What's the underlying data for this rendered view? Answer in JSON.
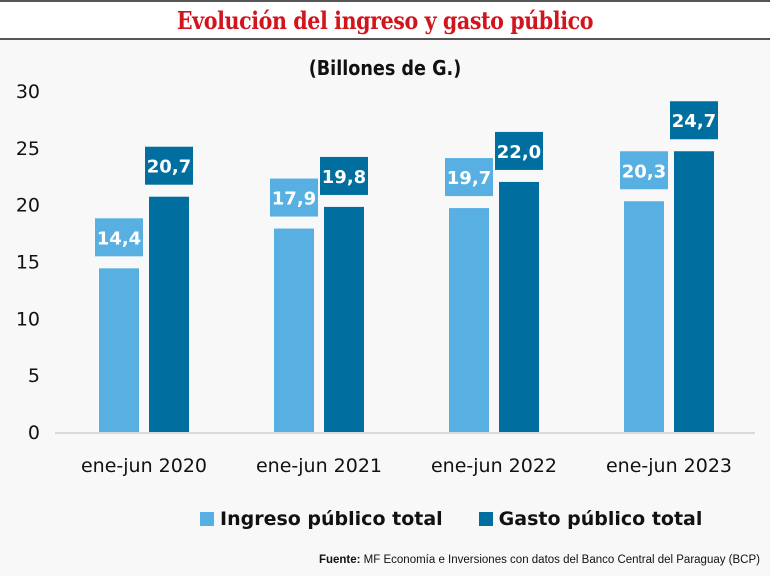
{
  "title": "Evolución del ingreso y gasto público",
  "subtitle": "(Billones de G.)",
  "colors": {
    "ingreso": "#58b0e2",
    "gasto": "#006e9e",
    "title": "#d2141c"
  },
  "legend": [
    {
      "label": "Ingreso público total",
      "series": "ingreso"
    },
    {
      "label": "Gasto público total",
      "series": "gasto"
    }
  ],
  "source": {
    "label": "Fuente:",
    "text": " MF Economía e Inversiones con datos del Banco Central del Paraguay (BCP)"
  },
  "chart_data": {
    "type": "bar",
    "title": "Evolución del ingreso y gasto público",
    "subtitle": "(Billones de G.)",
    "xlabel": "",
    "ylabel": "",
    "ylim": [
      0,
      30
    ],
    "yticks": [
      0,
      5,
      10,
      15,
      20,
      25,
      30
    ],
    "grid": false,
    "legend_position": "bottom",
    "categories": [
      "ene-jun 2020",
      "ene-jun 2021",
      "ene-jun 2022",
      "ene-jun 2023"
    ],
    "series": [
      {
        "name": "Ingreso público total",
        "key": "ingreso",
        "values": [
          14.4,
          17.9,
          19.7,
          20.3
        ],
        "labels": [
          "14,4",
          "17,9",
          "19,7",
          "20,3"
        ]
      },
      {
        "name": "Gasto público total",
        "key": "gasto",
        "values": [
          20.7,
          19.8,
          22.0,
          24.7
        ],
        "labels": [
          "20,7",
          "19,8",
          "22,0",
          "24,7"
        ]
      }
    ]
  }
}
